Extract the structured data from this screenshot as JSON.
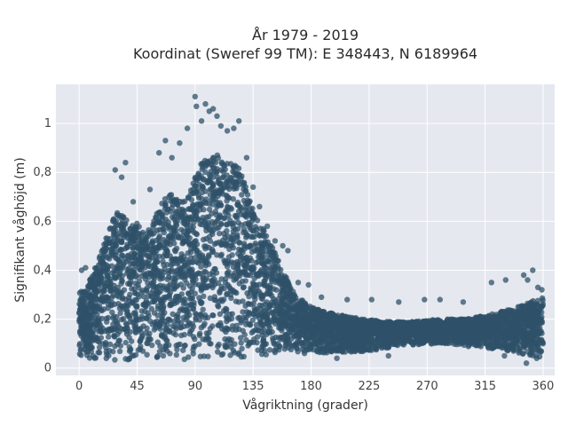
{
  "chart_data": {
    "type": "scatter",
    "title": "År 1979 - 2019",
    "subtitle": "Koordinat (Sweref 99 TM): E 348443, N 6189964",
    "xlabel": "Vågriktning (grader)",
    "ylabel": "Signifikant våghöjd (m)",
    "xlim": [
      -18,
      369
    ],
    "ylim": [
      -0.03,
      1.16
    ],
    "x_ticks": [
      0,
      45,
      90,
      135,
      180,
      225,
      270,
      315,
      360
    ],
    "x_tick_labels": [
      "0",
      "45",
      "90",
      "135",
      "180",
      "225",
      "270",
      "315",
      "360"
    ],
    "y_ticks": [
      0,
      0.2,
      0.4,
      0.6,
      0.8,
      1
    ],
    "y_tick_labels": [
      "0",
      "0,2",
      "0,4",
      "0,6",
      "0,8",
      "1"
    ],
    "grid": true,
    "marker_color": "#2f5169",
    "background_color": "#e5e8ef",
    "upper_envelope": [
      [
        0,
        0.31
      ],
      [
        5,
        0.33
      ],
      [
        10,
        0.38
      ],
      [
        15,
        0.44
      ],
      [
        20,
        0.52
      ],
      [
        25,
        0.6
      ],
      [
        30,
        0.66
      ],
      [
        35,
        0.62
      ],
      [
        40,
        0.6
      ],
      [
        45,
        0.6
      ],
      [
        50,
        0.55
      ],
      [
        55,
        0.58
      ],
      [
        60,
        0.63
      ],
      [
        65,
        0.68
      ],
      [
        70,
        0.72
      ],
      [
        75,
        0.7
      ],
      [
        80,
        0.68
      ],
      [
        85,
        0.72
      ],
      [
        90,
        0.78
      ],
      [
        95,
        0.84
      ],
      [
        100,
        0.86
      ],
      [
        105,
        0.87
      ],
      [
        110,
        0.87
      ],
      [
        115,
        0.86
      ],
      [
        120,
        0.84
      ],
      [
        125,
        0.81
      ],
      [
        130,
        0.74
      ],
      [
        135,
        0.66
      ],
      [
        140,
        0.6
      ],
      [
        145,
        0.55
      ],
      [
        150,
        0.5
      ],
      [
        155,
        0.44
      ],
      [
        160,
        0.38
      ],
      [
        165,
        0.32
      ],
      [
        170,
        0.29
      ],
      [
        180,
        0.25
      ],
      [
        190,
        0.23
      ],
      [
        200,
        0.22
      ],
      [
        220,
        0.2
      ],
      [
        240,
        0.19
      ],
      [
        260,
        0.19
      ],
      [
        280,
        0.2
      ],
      [
        300,
        0.2
      ],
      [
        320,
        0.22
      ],
      [
        340,
        0.25
      ],
      [
        350,
        0.27
      ],
      [
        360,
        0.29
      ]
    ],
    "lower_envelope": [
      [
        0,
        0.04
      ],
      [
        30,
        0.03
      ],
      [
        60,
        0.03
      ],
      [
        90,
        0.03
      ],
      [
        120,
        0.04
      ],
      [
        150,
        0.05
      ],
      [
        180,
        0.06
      ],
      [
        200,
        0.06
      ],
      [
        225,
        0.07
      ],
      [
        250,
        0.09
      ],
      [
        270,
        0.1
      ],
      [
        300,
        0.09
      ],
      [
        330,
        0.07
      ],
      [
        360,
        0.04
      ]
    ],
    "outliers": [
      [
        2,
        0.4
      ],
      [
        5,
        0.41
      ],
      [
        28,
        0.81
      ],
      [
        33,
        0.78
      ],
      [
        36,
        0.84
      ],
      [
        42,
        0.68
      ],
      [
        55,
        0.73
      ],
      [
        62,
        0.88
      ],
      [
        67,
        0.93
      ],
      [
        72,
        0.86
      ],
      [
        78,
        0.92
      ],
      [
        84,
        0.98
      ],
      [
        90,
        1.11
      ],
      [
        91,
        1.07
      ],
      [
        95,
        1.01
      ],
      [
        98,
        1.08
      ],
      [
        101,
        1.05
      ],
      [
        104,
        1.06
      ],
      [
        107,
        1.03
      ],
      [
        110,
        0.99
      ],
      [
        115,
        0.97
      ],
      [
        120,
        0.98
      ],
      [
        124,
        1.01
      ],
      [
        130,
        0.86
      ],
      [
        135,
        0.74
      ],
      [
        140,
        0.66
      ],
      [
        146,
        0.58
      ],
      [
        152,
        0.52
      ],
      [
        158,
        0.5
      ],
      [
        162,
        0.48
      ],
      [
        170,
        0.35
      ],
      [
        178,
        0.34
      ],
      [
        188,
        0.29
      ],
      [
        208,
        0.28
      ],
      [
        227,
        0.28
      ],
      [
        248,
        0.27
      ],
      [
        268,
        0.28
      ],
      [
        280,
        0.28
      ],
      [
        298,
        0.27
      ],
      [
        320,
        0.35
      ],
      [
        331,
        0.36
      ],
      [
        345,
        0.38
      ],
      [
        348,
        0.36
      ],
      [
        352,
        0.4
      ],
      [
        356,
        0.33
      ],
      [
        359,
        0.32
      ],
      [
        355,
        0.04
      ],
      [
        347,
        0.02
      ],
      [
        330,
        0.05
      ],
      [
        240,
        0.05
      ],
      [
        200,
        0.04
      ]
    ]
  }
}
